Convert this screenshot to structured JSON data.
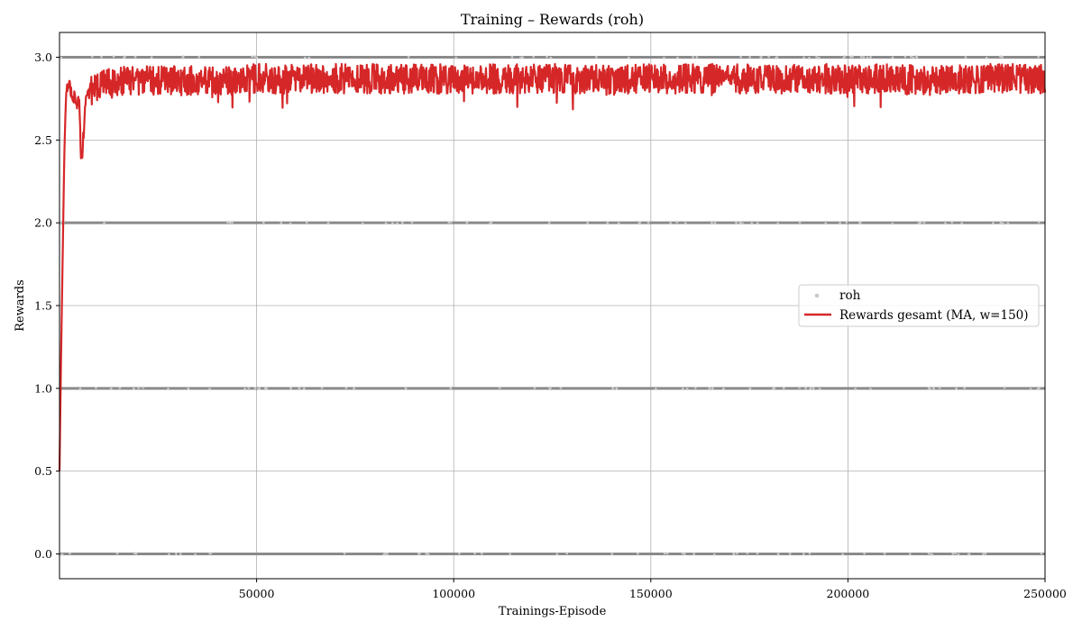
{
  "chart_data": {
    "type": "line",
    "title": "Training – Rewards (roh)",
    "xlabel": "Trainings-Episode",
    "ylabel": "Rewards",
    "xlim": [
      0,
      250000
    ],
    "ylim": [
      -0.15,
      3.15
    ],
    "xticks": [
      50000,
      100000,
      150000,
      200000,
      250000
    ],
    "xtick_labels": [
      "50000",
      "100000",
      "150000",
      "200000",
      "250000"
    ],
    "yticks": [
      0.0,
      0.5,
      1.0,
      1.5,
      2.0,
      2.5,
      3.0
    ],
    "ytick_labels": [
      "0.0",
      "0.5",
      "1.0",
      "1.5",
      "2.0",
      "2.5",
      "3.0"
    ],
    "grid": true,
    "legend_position": "center-right",
    "series": [
      {
        "name": "roh",
        "kind": "scatter",
        "color": "#808080",
        "levels": [
          0,
          1,
          2,
          3
        ],
        "x_range": [
          0,
          250000
        ]
      },
      {
        "name": "Rewards gesamt (MA, w=150)",
        "kind": "line",
        "color": "#d62728",
        "window": 150,
        "x": [
          0,
          400,
          800,
          1200,
          1600,
          2000,
          2500,
          3000,
          4000,
          5000,
          5500,
          6000,
          6500,
          7000,
          8000,
          10000,
          15000,
          20000,
          30000,
          40000,
          50000,
          60000,
          70000,
          80000,
          90000,
          100000,
          110000,
          120000,
          130000,
          140000,
          150000,
          160000,
          170000,
          180000,
          190000,
          200000,
          210000,
          220000,
          230000,
          240000,
          250000
        ],
        "y": [
          0.5,
          1.2,
          1.8,
          2.4,
          2.75,
          2.8,
          2.85,
          2.8,
          2.75,
          2.7,
          2.35,
          2.5,
          2.7,
          2.78,
          2.8,
          2.83,
          2.85,
          2.86,
          2.86,
          2.86,
          2.87,
          2.87,
          2.87,
          2.87,
          2.87,
          2.87,
          2.87,
          2.87,
          2.87,
          2.86,
          2.87,
          2.87,
          2.87,
          2.87,
          2.87,
          2.87,
          2.87,
          2.86,
          2.87,
          2.87,
          2.87
        ]
      }
    ]
  }
}
